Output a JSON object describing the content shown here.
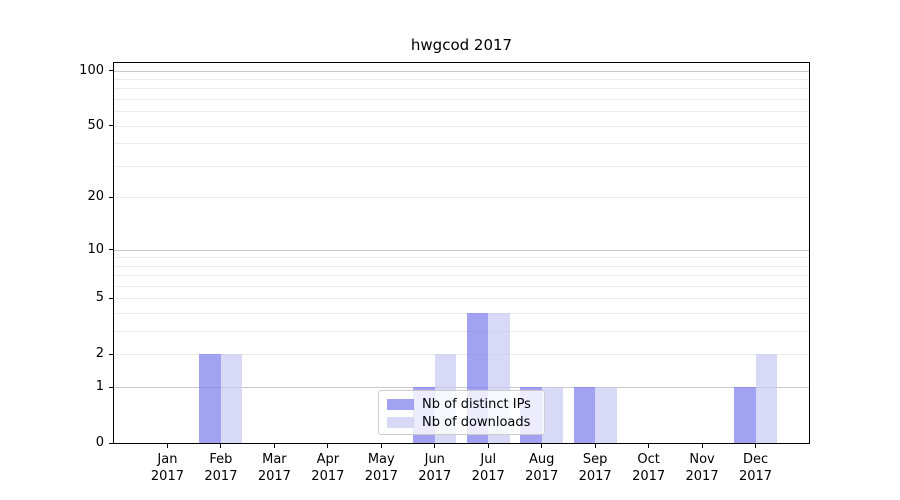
{
  "title": "hwgcod 2017",
  "chart_data": {
    "type": "bar",
    "title": "hwgcod 2017",
    "categories": [
      "Jan 2017",
      "Feb 2017",
      "Mar 2017",
      "Apr 2017",
      "May 2017",
      "Jun 2017",
      "Jul 2017",
      "Aug 2017",
      "Sep 2017",
      "Oct 2017",
      "Nov 2017",
      "Dec 2017"
    ],
    "months": [
      "Jan",
      "Feb",
      "Mar",
      "Apr",
      "May",
      "Jun",
      "Jul",
      "Aug",
      "Sep",
      "Oct",
      "Nov",
      "Dec"
    ],
    "year": "2017",
    "series": [
      {
        "name": "Nb of distinct IPs",
        "color": "#7a7aee",
        "opacity": 0.7,
        "values": [
          0,
          2,
          0,
          0,
          0,
          1,
          4,
          1,
          1,
          0,
          0,
          1
        ]
      },
      {
        "name": "Nb of downloads",
        "color": "#c8c8f4",
        "opacity": 0.7,
        "values": [
          0,
          2,
          0,
          0,
          0,
          2,
          4,
          1,
          1,
          0,
          0,
          2
        ]
      }
    ],
    "xlabel": "",
    "ylabel": "",
    "scale": "log1p",
    "ylim": [
      0,
      110
    ],
    "yticks": [
      0,
      1,
      2,
      5,
      10,
      20,
      50,
      100
    ],
    "grid": {
      "on": true,
      "major_values": [
        1,
        10,
        100
      ],
      "minor_values": [
        2,
        3,
        4,
        5,
        6,
        7,
        8,
        9,
        20,
        30,
        40,
        50,
        60,
        70,
        80,
        90
      ],
      "major_color": "#c9c9c9",
      "minor_color": "#ebebeb"
    },
    "legend_position": "lower center"
  },
  "colors": {
    "background": "#ffffff",
    "spine": "#000000",
    "text": "#000000",
    "bar_dark_rendered": "#a6a6f2",
    "bar_light_rendered": "#d8d8f7"
  }
}
